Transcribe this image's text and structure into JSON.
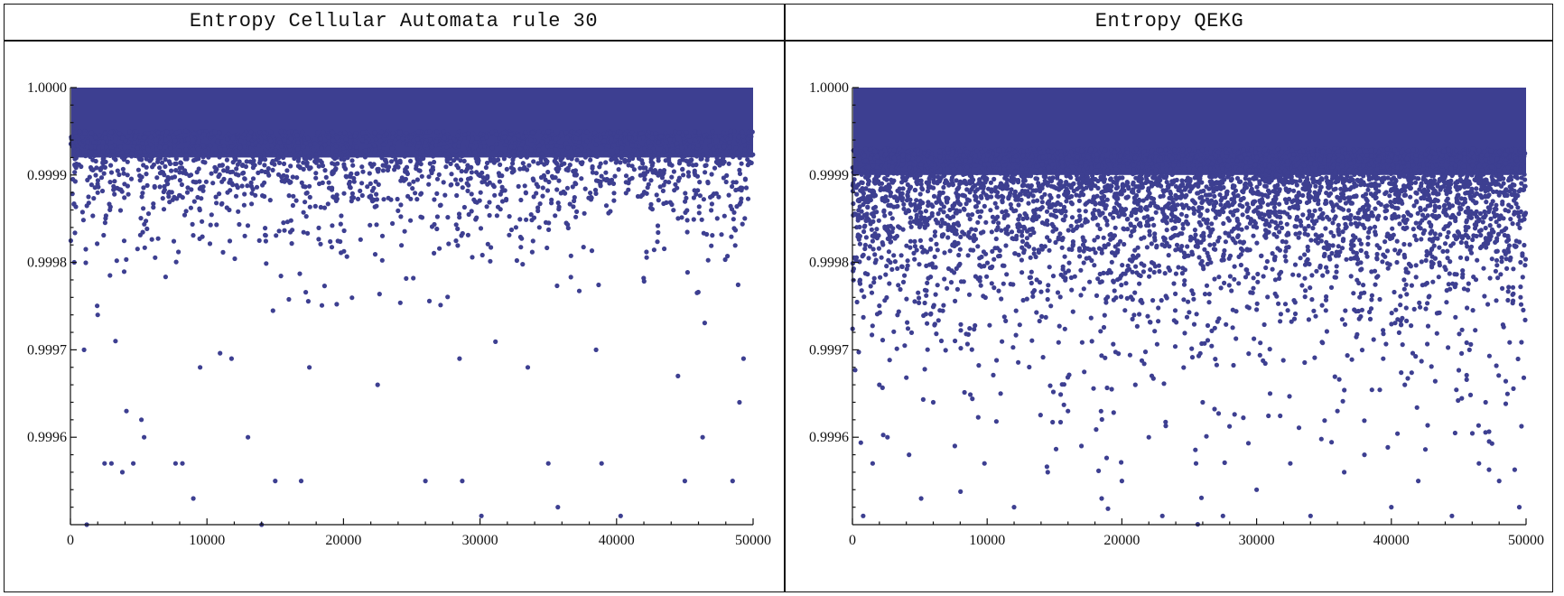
{
  "chart_data": [
    {
      "type": "scatter",
      "title": "Entropy Cellular Automata rule 30",
      "xlabel": "",
      "ylabel": "",
      "xlim": [
        0,
        50000
      ],
      "ylim": [
        0.9995,
        1.0
      ],
      "x_ticks": [
        0,
        10000,
        20000,
        30000,
        40000,
        50000
      ],
      "y_ticks": [
        "1.0000",
        "0.9999",
        "0.9998",
        "0.9997",
        "0.9996"
      ],
      "y_tick_values": [
        1.0,
        0.9999,
        0.9998,
        0.9997,
        0.9996
      ],
      "grid": false,
      "marker_color": "#3d3f91",
      "n_points": 50000,
      "distribution": {
        "dense_band_min": 0.99992,
        "tail_scale": 7e-05,
        "sample_points": [
          [
            1200,
            0.9995
          ],
          [
            2500,
            0.99957
          ],
          [
            3000,
            0.99957
          ],
          [
            3800,
            0.99956
          ],
          [
            4100,
            0.99963
          ],
          [
            4600,
            0.99957
          ],
          [
            5200,
            0.99962
          ],
          [
            5400,
            0.9996
          ],
          [
            7700,
            0.99957
          ],
          [
            8200,
            0.99957
          ],
          [
            9000,
            0.99953
          ],
          [
            13000,
            0.9996
          ],
          [
            14000,
            0.9995
          ],
          [
            15000,
            0.99955
          ],
          [
            16900,
            0.99955
          ],
          [
            26000,
            0.99955
          ],
          [
            28700,
            0.99955
          ],
          [
            30100,
            0.99951
          ],
          [
            35000,
            0.99957
          ],
          [
            35700,
            0.99952
          ],
          [
            38900,
            0.99957
          ],
          [
            40300,
            0.99951
          ],
          [
            45000,
            0.99955
          ],
          [
            46300,
            0.9996
          ],
          [
            48500,
            0.99955
          ],
          [
            49000,
            0.99964
          ],
          [
            1000,
            0.9997
          ],
          [
            2000,
            0.99974
          ],
          [
            3300,
            0.99971
          ],
          [
            9500,
            0.99968
          ],
          [
            11800,
            0.99969
          ],
          [
            17500,
            0.99968
          ],
          [
            22500,
            0.99966
          ],
          [
            28500,
            0.99969
          ],
          [
            33500,
            0.99968
          ],
          [
            38500,
            0.9997
          ],
          [
            44500,
            0.99967
          ],
          [
            49300,
            0.99969
          ]
        ]
      }
    },
    {
      "type": "scatter",
      "title": "Entropy QEKG",
      "xlabel": "",
      "ylabel": "",
      "xlim": [
        0,
        50000
      ],
      "ylim": [
        0.9995,
        1.0
      ],
      "x_ticks": [
        0,
        10000,
        20000,
        30000,
        40000,
        50000
      ],
      "y_ticks": [
        "1.0000",
        "0.9999",
        "0.9998",
        "0.9997",
        "0.9996"
      ],
      "y_tick_values": [
        1.0,
        0.9999,
        0.9998,
        0.9997,
        0.9996
      ],
      "grid": false,
      "marker_color": "#3d3f91",
      "n_points": 50000,
      "distribution": {
        "dense_band_min": 0.9999,
        "tail_scale": 0.00012,
        "sample_points": [
          [
            800,
            0.99951
          ],
          [
            1500,
            0.99957
          ],
          [
            2600,
            0.9996
          ],
          [
            4200,
            0.99958
          ],
          [
            5100,
            0.99953
          ],
          [
            7600,
            0.99959
          ],
          [
            9800,
            0.99957
          ],
          [
            12000,
            0.99952
          ],
          [
            14500,
            0.99956
          ],
          [
            17000,
            0.99959
          ],
          [
            18500,
            0.99953
          ],
          [
            20000,
            0.99955
          ],
          [
            22000,
            0.9996
          ],
          [
            23000,
            0.99951
          ],
          [
            25500,
            0.99957
          ],
          [
            27500,
            0.99951
          ],
          [
            30000,
            0.99954
          ],
          [
            32500,
            0.99957
          ],
          [
            34000,
            0.99951
          ],
          [
            36500,
            0.99956
          ],
          [
            38000,
            0.99958
          ],
          [
            40000,
            0.99952
          ],
          [
            42000,
            0.99955
          ],
          [
            44500,
            0.99951
          ],
          [
            46500,
            0.99957
          ],
          [
            48000,
            0.99955
          ],
          [
            49500,
            0.99952
          ],
          [
            2000,
            0.99966
          ],
          [
            6000,
            0.99964
          ],
          [
            11000,
            0.99965
          ],
          [
            16000,
            0.99963
          ],
          [
            21000,
            0.99966
          ],
          [
            26000,
            0.99964
          ],
          [
            31000,
            0.99965
          ],
          [
            36000,
            0.99963
          ],
          [
            41000,
            0.99966
          ],
          [
            47000,
            0.99964
          ]
        ]
      }
    }
  ]
}
